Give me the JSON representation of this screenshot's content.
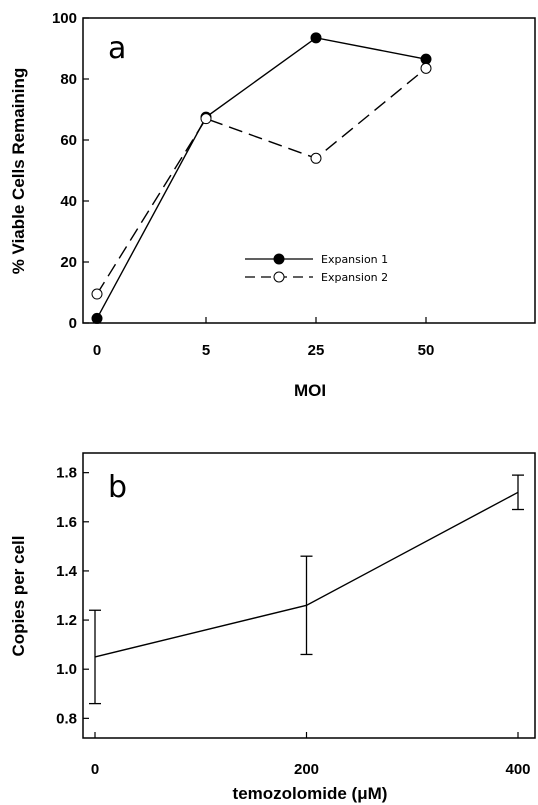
{
  "chart_data": [
    {
      "type": "line",
      "panel_label": "a",
      "xlabel": "MOI",
      "ylabel": "% Viable Cells Remaining",
      "categories": [
        "0",
        "5",
        "25",
        "50"
      ],
      "ylim": [
        0,
        100
      ],
      "yticks": [
        "0",
        "20",
        "40",
        "60",
        "80",
        "100"
      ],
      "legend_position": "lower-center",
      "series": [
        {
          "name": "Expansion 1",
          "values": [
            1.5,
            67.5,
            93.5,
            86.5
          ],
          "line_style": "solid",
          "marker": "filled-circle"
        },
        {
          "name": "Expansion 2",
          "values": [
            9.5,
            67.0,
            54.0,
            83.5
          ],
          "line_style": "dashed",
          "marker": "open-circle"
        }
      ]
    },
    {
      "type": "line",
      "panel_label": "b",
      "xlabel": "temozolomide (μM)",
      "ylabel": "Copies per cell",
      "x": [
        0,
        200,
        400
      ],
      "xticks": [
        "0",
        "200",
        "400"
      ],
      "xlim": [
        0,
        400
      ],
      "ylim": [
        0.72,
        1.88
      ],
      "yticks": [
        "0.8",
        "1.0",
        "1.2",
        "1.4",
        "1.6",
        "1.8"
      ],
      "series": [
        {
          "values": [
            1.05,
            1.26,
            1.72
          ],
          "error": [
            0.19,
            0.2,
            0.07
          ]
        }
      ]
    }
  ]
}
